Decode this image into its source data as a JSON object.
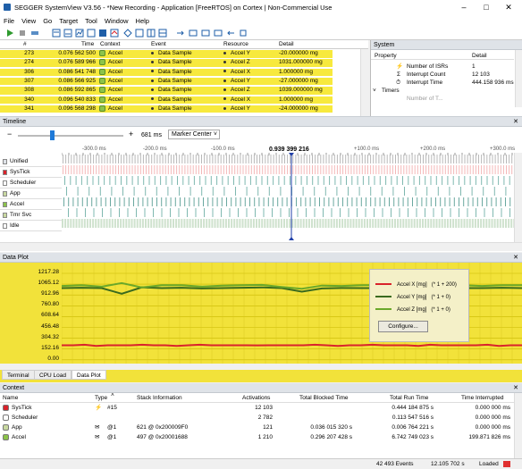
{
  "window": {
    "title": "SEGGER SystemView V3.56 - *New Recording - Application [FreeRTOS] on Cortex | Non-Commercial Use"
  },
  "menu": [
    "File",
    "View",
    "Go",
    "Target",
    "Tool",
    "Window",
    "Help"
  ],
  "events": {
    "columns": {
      "num": "#",
      "time": "Time",
      "context": "Context",
      "event": "Event",
      "resource": "Resource",
      "detail": "Detail"
    },
    "rows": [
      {
        "num": "273",
        "time": "0.076 562 500",
        "context": "Accel",
        "event": "Data Sample",
        "resource": "Accel Y",
        "detail": "-20.000000 mg"
      },
      {
        "num": "274",
        "time": "0.076 589 966",
        "context": "Accel",
        "event": "Data Sample",
        "resource": "Accel Z",
        "detail": "1031.000000 mg"
      },
      {
        "num": "306",
        "time": "0.086 541 748",
        "context": "Accel",
        "event": "Data Sample",
        "resource": "Accel X",
        "detail": "1.000000 mg"
      },
      {
        "num": "307",
        "time": "0.086 566 925",
        "context": "Accel",
        "event": "Data Sample",
        "resource": "Accel Y",
        "detail": "-27.000000 mg"
      },
      {
        "num": "308",
        "time": "0.086 592 865",
        "context": "Accel",
        "event": "Data Sample",
        "resource": "Accel Z",
        "detail": "1039.000000 mg"
      },
      {
        "num": "340",
        "time": "0.096 540 833",
        "context": "Accel",
        "event": "Data Sample",
        "resource": "Accel X",
        "detail": "1.000000 mg"
      },
      {
        "num": "341",
        "time": "0.096 568 298",
        "context": "Accel",
        "event": "Data Sample",
        "resource": "Accel Y",
        "detail": "-24.000000 mg"
      }
    ]
  },
  "system": {
    "title": "System",
    "col_property": "Property",
    "col_detail": "Detail",
    "rows": [
      {
        "property": "Number of ISRs",
        "detail": "1"
      },
      {
        "property": "Interrupt Count",
        "detail": "12 103"
      },
      {
        "property": "Interrupt Time",
        "detail": "444.158 936 ms"
      }
    ],
    "section": "Timers",
    "partial": "Number of T..."
  },
  "timeline": {
    "title": "Timeline",
    "zoom": "681 ms",
    "minus": "−",
    "plus": "+",
    "mode": "Marker Center",
    "cursor": "0.939 399 216",
    "ticks": [
      "-300.0 ms",
      "-200.0 ms",
      "-100.0 ms",
      "+100.0 ms",
      "+200.0 ms",
      "+300.0 ms"
    ],
    "rows": [
      {
        "label": "Unified",
        "color": "#dfe3e8"
      },
      {
        "label": "SysTick",
        "color": "#d9232b"
      },
      {
        "label": "Scheduler",
        "color": "#ffffff"
      },
      {
        "label": "App",
        "color": "#c8d8a0"
      },
      {
        "label": "Accel",
        "color": "#8cc34a"
      },
      {
        "label": "Tmr Svc",
        "color": "#c8d8a0"
      },
      {
        "label": "Idle",
        "color": "#ffffff"
      }
    ]
  },
  "dataplot": {
    "title": "Data Plot",
    "yticks": [
      "1217.28",
      "1065.12",
      "912.96",
      "760.80",
      "608.64",
      "456.48",
      "304.32",
      "152.16",
      "0.00"
    ],
    "legend": [
      {
        "name": "Accel X [mg]",
        "scale": "(* 1 + 200)",
        "color": "#d9232b"
      },
      {
        "name": "Accel Y [mg]",
        "scale": "(* 1 + 0)",
        "color": "#3a6a1e"
      },
      {
        "name": "Accel Z [mg]",
        "scale": "(* 1 + 0)",
        "color": "#6aa82a"
      }
    ],
    "configure": "Configure...",
    "tabs": [
      "Terminal",
      "CPU Load",
      "Data Plot"
    ]
  },
  "context": {
    "title": "Context",
    "columns": {
      "name": "Name",
      "type": "Type",
      "stack": "Stack Information",
      "act": "Activations",
      "blocked": "Total Blocked Time",
      "run": "Total Run Time",
      "int": "Time Interrupted"
    },
    "rows": [
      {
        "name": "SysTick",
        "type": "#15",
        "stack": "",
        "act": "12 103",
        "blocked": "",
        "run": "0.444 184 875 s",
        "int": "0.000 000 ms",
        "color": "#d9232b"
      },
      {
        "name": "Scheduler",
        "type": "",
        "stack": "",
        "act": "2 782",
        "blocked": "",
        "run": "0.113 547 516 s",
        "int": "0.000 000 ms",
        "color": "#ffffff"
      },
      {
        "name": "App",
        "type": "@1",
        "stack": "621 @ 0x200009F0",
        "act": "121",
        "blocked": "0.036 015 320 s",
        "run": "0.006 764 221 s",
        "int": "0.000 000 ms",
        "color": "#c8d8a0"
      },
      {
        "name": "Accel",
        "type": "@1",
        "stack": "497 @ 0x20001688",
        "act": "1 210",
        "blocked": "0.296 207 428 s",
        "run": "6.742 749 023 s",
        "int": "199.871 826 ms",
        "color": "#8cc34a"
      }
    ]
  },
  "status": {
    "events": "42 493 Events",
    "duration": "12.105 702 s",
    "state": "Loaded"
  }
}
